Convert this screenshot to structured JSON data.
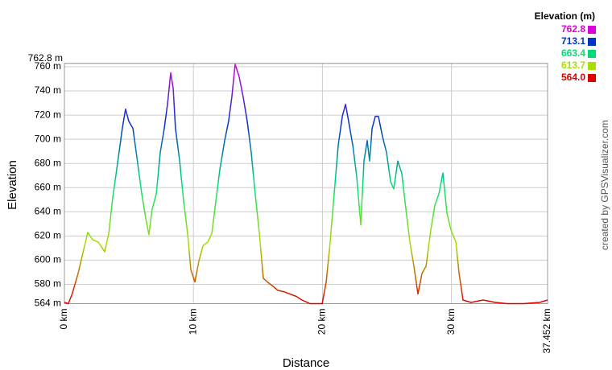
{
  "chart_data": {
    "type": "line",
    "x_label": "Distance",
    "y_label": "Elevation",
    "credit": "created by GPSVisualizer.com",
    "legend": {
      "title": "Elevation (m)",
      "items": [
        {
          "value": 762.8,
          "label": "762.8",
          "color": "#dd00dd"
        },
        {
          "value": 713.1,
          "label": "713.1",
          "color": "#0033cc"
        },
        {
          "value": 663.4,
          "label": "663.4",
          "color": "#00dd77"
        },
        {
          "value": 613.7,
          "label": "613.7",
          "color": "#aadd00"
        },
        {
          "value": 564.0,
          "label": "564.0",
          "color": "#dd0000"
        }
      ]
    },
    "xlim": [
      0,
      37.452
    ],
    "xticks": [
      {
        "value": 0,
        "label": "0 km"
      },
      {
        "value": 10,
        "label": "10 km"
      },
      {
        "value": 20,
        "label": "20 km"
      },
      {
        "value": 30,
        "label": "30 km"
      },
      {
        "value": 37.452,
        "label": "37.452 km"
      }
    ],
    "ylim": [
      564,
      762.8
    ],
    "yticks": [
      {
        "value": 564,
        "label": "564 m"
      },
      {
        "value": 580,
        "label": "580 m"
      },
      {
        "value": 600,
        "label": "600 m"
      },
      {
        "value": 620,
        "label": "620 m"
      },
      {
        "value": 640,
        "label": "640 m"
      },
      {
        "value": 660,
        "label": "660 m"
      },
      {
        "value": 680,
        "label": "680 m"
      },
      {
        "value": 700,
        "label": "700 m"
      },
      {
        "value": 720,
        "label": "720 m"
      },
      {
        "value": 740,
        "label": "740 m"
      },
      {
        "value": 760,
        "label": "760 m"
      },
      {
        "value": 762.8,
        "label": "762.8 m"
      }
    ],
    "grid": true,
    "x": [
      0,
      0.3,
      0.6,
      1.06,
      1.37,
      1.81,
      2.18,
      2.62,
      3.12,
      3.43,
      3.75,
      4.18,
      4.49,
      4.74,
      4.99,
      5.31,
      5.62,
      5.99,
      6.3,
      6.55,
      6.8,
      7.12,
      7.43,
      7.74,
      7.99,
      8.24,
      8.43,
      8.61,
      8.93,
      9.24,
      9.55,
      9.8,
      10.11,
      10.42,
      10.74,
      11.11,
      11.42,
      11.74,
      12.05,
      12.42,
      12.73,
      12.98,
      13.23,
      13.54,
      13.86,
      14.17,
      14.48,
      14.79,
      15.11,
      15.42,
      15.73,
      16.1,
      16.54,
      16.98,
      17.48,
      17.98,
      18.41,
      19.04,
      19.98,
      20.29,
      20.6,
      20.91,
      21.22,
      21.54,
      21.79,
      22.03,
      22.35,
      22.66,
      22.97,
      23.22,
      23.47,
      23.66,
      23.85,
      24.1,
      24.34,
      24.66,
      24.97,
      25.28,
      25.53,
      25.84,
      26.15,
      26.47,
      26.78,
      27.09,
      27.4,
      27.72,
      28.03,
      28.4,
      28.71,
      29.03,
      29.34,
      29.65,
      29.96,
      30.34,
      30.59,
      30.9,
      31.52,
      32.46,
      33.4,
      34.33,
      35.58,
      36.83,
      37.45
    ],
    "values": [
      565,
      564,
      572,
      589,
      603,
      623,
      617,
      615,
      607,
      622,
      652,
      685,
      709,
      725,
      715,
      709,
      685,
      655,
      635,
      621,
      642,
      655,
      689,
      709,
      729,
      755,
      742,
      709,
      682,
      649,
      622,
      592,
      582,
      599,
      612,
      615,
      622,
      649,
      675,
      699,
      715,
      735,
      762,
      752,
      735,
      715,
      689,
      655,
      622,
      585,
      582,
      579,
      575,
      574,
      572,
      570,
      567,
      564,
      564,
      582,
      615,
      655,
      695,
      719,
      729,
      715,
      695,
      669,
      629,
      682,
      699,
      682,
      709,
      719,
      719,
      702,
      689,
      665,
      659,
      682,
      672,
      642,
      615,
      595,
      572,
      589,
      595,
      625,
      645,
      655,
      672,
      639,
      625,
      615,
      589,
      567,
      565,
      567,
      565,
      564,
      564,
      565,
      567
    ]
  }
}
